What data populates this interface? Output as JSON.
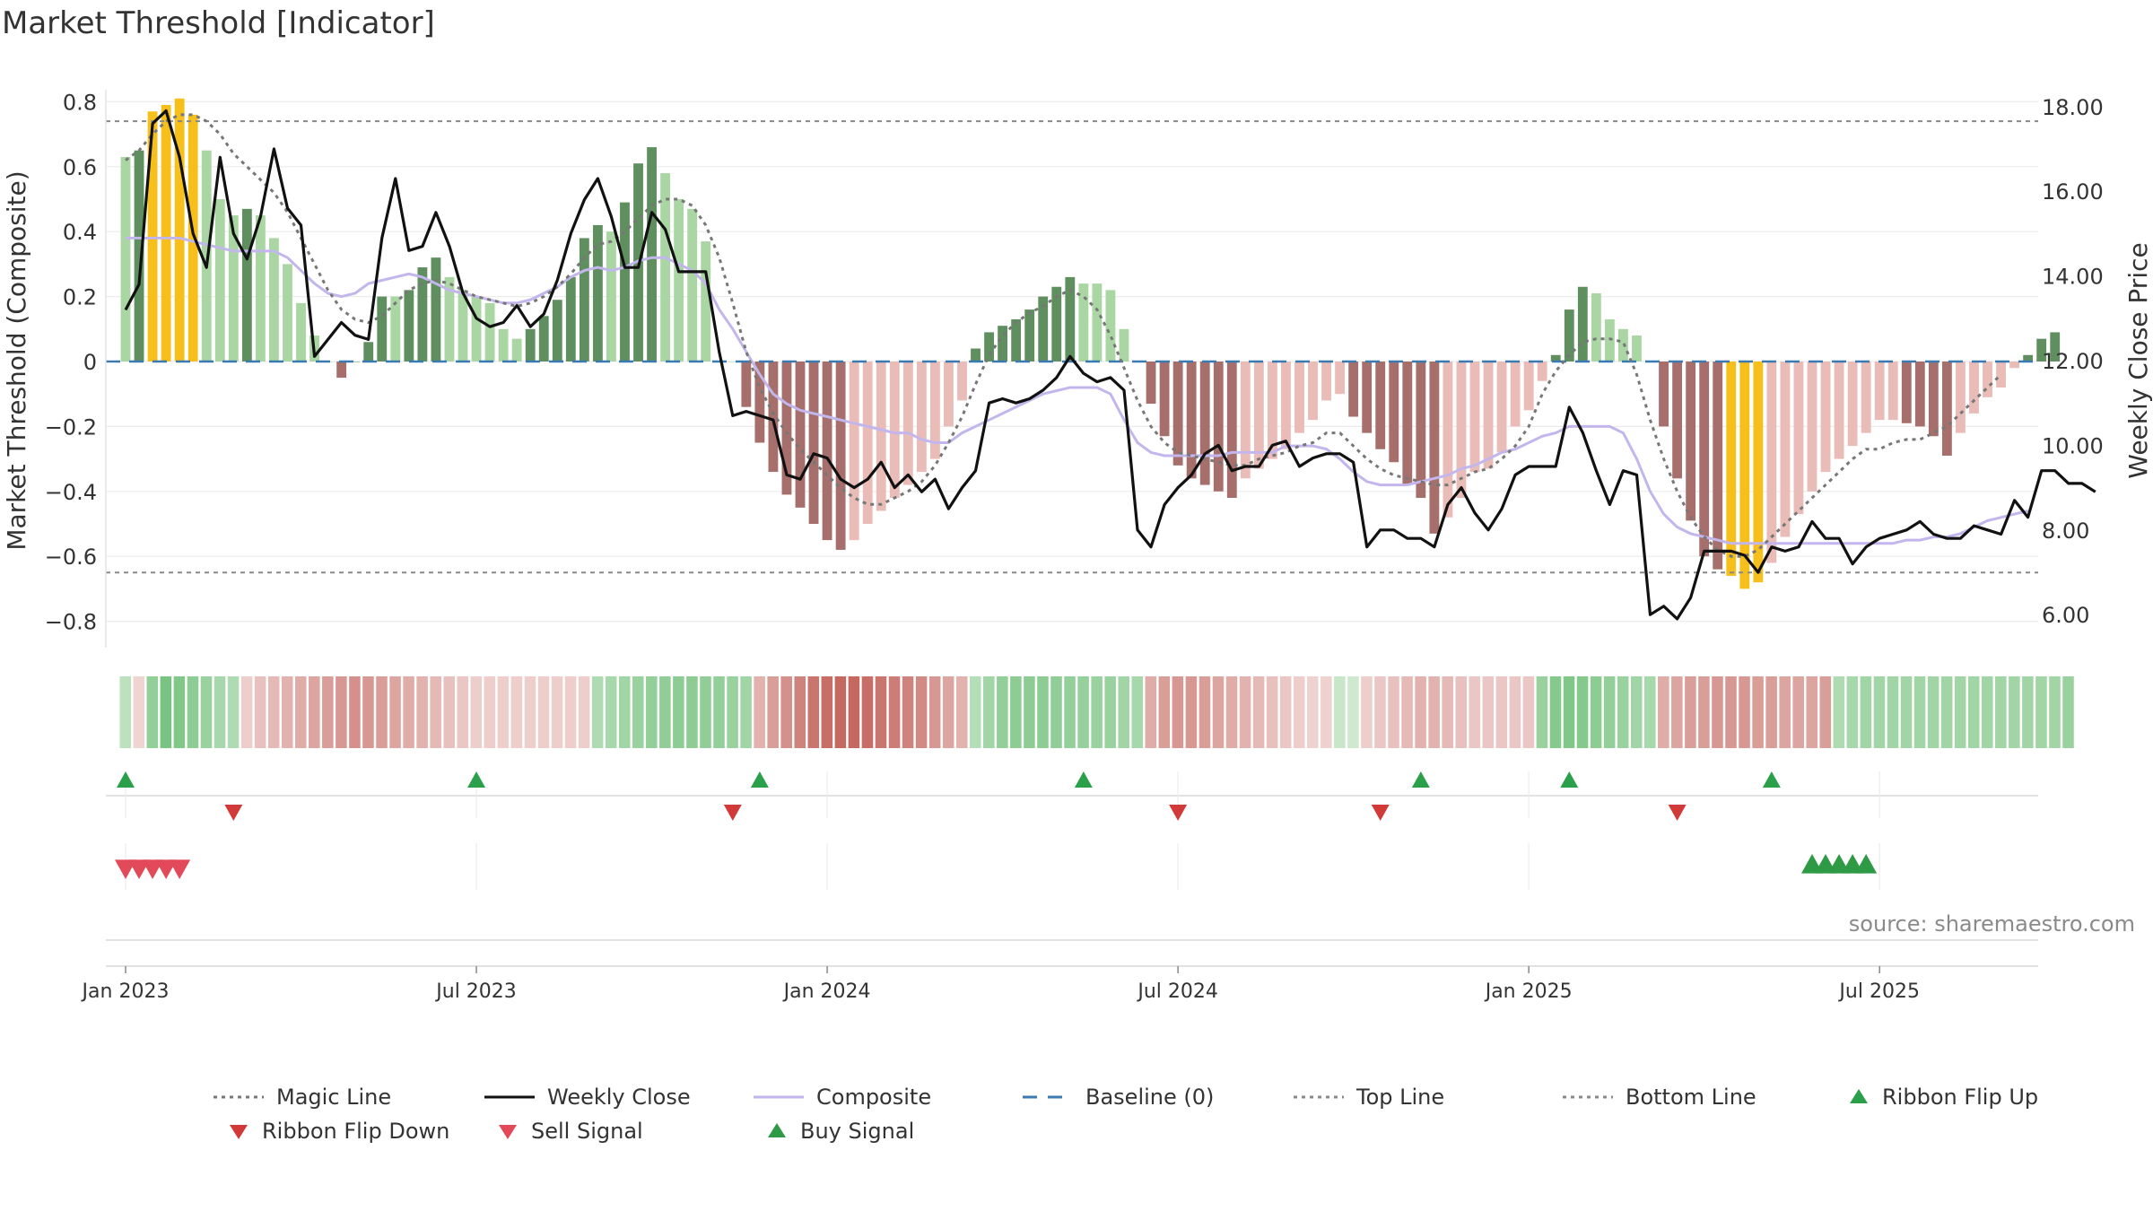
{
  "title": "Market Threshold [Indicator]",
  "source": "source: sharemaestro.com",
  "colors": {
    "magic": "#777777",
    "close": "#111111",
    "composite": "#c3b6ec",
    "baseline": "#3a7ab0",
    "top_bottom": "#888888",
    "flip_up": "#2aa04a",
    "flip_down": "#d23a3a",
    "sell": "#e24a5a",
    "buy": "#2f9a46",
    "bar_green_dark": "#5f8f5f",
    "bar_green_light": "#a9d6a2",
    "bar_red_dark": "#a66f6c",
    "bar_red_light": "#eabcb8",
    "bar_extreme": "#f7bf1a"
  },
  "legend": [
    {
      "key": "magic",
      "label": "Magic Line",
      "type": "dotted"
    },
    {
      "key": "close",
      "label": "Weekly Close",
      "type": "solid"
    },
    {
      "key": "composite",
      "label": "Composite",
      "type": "solid"
    },
    {
      "key": "baseline",
      "label": "Baseline (0)",
      "type": "dashed"
    },
    {
      "key": "top",
      "label": "Top Line",
      "type": "dotted"
    },
    {
      "key": "bottom",
      "label": "Bottom Line",
      "type": "dotted"
    },
    {
      "key": "flip_up",
      "label": "Ribbon Flip Up",
      "type": "tri-up"
    },
    {
      "key": "flip_down",
      "label": "Ribbon Flip Down",
      "type": "tri-down"
    },
    {
      "key": "sell",
      "label": "Sell Signal",
      "type": "tri-down"
    },
    {
      "key": "buy",
      "label": "Buy Signal",
      "type": "tri-up"
    }
  ],
  "chart_data": {
    "type": "bar",
    "ylabel_left": "Market Threshold (Composite)",
    "ylabel_right": "Weekly Close Price",
    "ylim_left": [
      -0.9,
      0.82
    ],
    "yticks_left": [
      "0.8",
      "0.6",
      "0.4",
      "0.2",
      "0",
      "−0.2",
      "−0.4",
      "−0.6",
      "−0.8"
    ],
    "ylim_right": [
      5.0,
      18.4
    ],
    "yticks_right": [
      "18.00",
      "16.00",
      "14.00",
      "12.00",
      "10.00",
      "8.00",
      "6.00"
    ],
    "x_start": "2022-12-26",
    "x_interval": "weekly",
    "x_ticks": [
      {
        "label": "Jan 2023",
        "week": 1
      },
      {
        "label": "Jul 2023",
        "week": 27
      },
      {
        "label": "Jan 2024",
        "week": 53
      },
      {
        "label": "Jul 2024",
        "week": 79
      },
      {
        "label": "Jan 2025",
        "week": 105
      },
      {
        "label": "Jul 2025",
        "week": 131
      }
    ],
    "top_line": 0.74,
    "bottom_line": -0.65,
    "composite_bars": [
      0.63,
      0.65,
      0.77,
      0.79,
      0.81,
      0.76,
      0.65,
      0.5,
      0.45,
      0.47,
      0.45,
      0.38,
      0.3,
      0.18,
      0.08,
      0.0,
      -0.05,
      0.0,
      0.06,
      0.2,
      0.2,
      0.22,
      0.29,
      0.32,
      0.26,
      0.22,
      0.2,
      0.18,
      0.1,
      0.07,
      0.1,
      0.14,
      0.19,
      0.26,
      0.38,
      0.42,
      0.4,
      0.49,
      0.61,
      0.66,
      0.58,
      0.5,
      0.47,
      0.37,
      0.0,
      0.0,
      -0.14,
      -0.25,
      -0.34,
      -0.41,
      -0.45,
      -0.5,
      -0.55,
      -0.58,
      -0.55,
      -0.5,
      -0.46,
      -0.42,
      -0.38,
      -0.34,
      -0.3,
      -0.2,
      -0.12,
      0.04,
      0.09,
      0.11,
      0.13,
      0.16,
      0.2,
      0.23,
      0.26,
      0.24,
      0.24,
      0.22,
      0.1,
      0.0,
      -0.13,
      -0.23,
      -0.32,
      -0.36,
      -0.38,
      -0.4,
      -0.42,
      -0.36,
      -0.33,
      -0.3,
      -0.27,
      -0.22,
      -0.18,
      -0.12,
      -0.1,
      -0.17,
      -0.22,
      -0.27,
      -0.31,
      -0.38,
      -0.42,
      -0.53,
      -0.48,
      -0.42,
      -0.34,
      -0.33,
      -0.28,
      -0.2,
      -0.15,
      -0.06,
      0.02,
      0.16,
      0.23,
      0.21,
      0.13,
      0.1,
      0.08,
      0.0,
      -0.2,
      -0.36,
      -0.49,
      -0.6,
      -0.64,
      -0.66,
      -0.7,
      -0.68,
      -0.62,
      -0.54,
      -0.47,
      -0.4,
      -0.34,
      -0.3,
      -0.26,
      -0.22,
      -0.18,
      -0.18,
      -0.19,
      -0.2,
      -0.23,
      -0.29,
      -0.22,
      -0.16,
      -0.11,
      -0.08,
      -0.02,
      0.02,
      0.07,
      0.09
    ],
    "weekly_close": [
      13.2,
      13.8,
      17.6,
      17.9,
      16.8,
      15.0,
      14.2,
      16.8,
      15.0,
      14.4,
      15.4,
      17.0,
      15.6,
      15.2,
      12.1,
      12.5,
      12.9,
      12.6,
      12.5,
      14.9,
      16.3,
      14.6,
      14.7,
      15.5,
      14.7,
      13.6,
      13.0,
      12.8,
      12.9,
      13.3,
      12.8,
      13.1,
      13.9,
      15.0,
      15.8,
      16.3,
      15.4,
      14.2,
      14.2,
      15.5,
      15.1,
      14.1,
      14.1,
      14.1,
      12.2,
      10.7,
      10.8,
      10.7,
      10.6,
      9.3,
      9.2,
      9.8,
      9.7,
      9.2,
      9.0,
      9.2,
      9.6,
      9.0,
      9.3,
      8.9,
      9.2,
      8.5,
      9.0,
      9.4,
      11.0,
      11.1,
      11.0,
      11.1,
      11.3,
      11.6,
      12.1,
      11.7,
      11.5,
      11.6,
      11.3,
      8.0,
      7.6,
      8.6,
      9.0,
      9.3,
      9.8,
      10.0,
      9.4,
      9.5,
      9.5,
      10.0,
      10.1,
      9.5,
      9.7,
      9.8,
      9.8,
      9.6,
      7.6,
      8.0,
      8.0,
      7.8,
      7.8,
      7.6,
      8.6,
      9.0,
      8.4,
      8.0,
      8.5,
      9.3,
      9.5,
      9.5,
      9.5,
      10.9,
      10.3,
      9.4,
      8.6,
      9.4,
      9.3,
      6.0,
      6.2,
      5.9,
      6.4,
      7.5,
      7.5,
      7.5,
      7.4,
      7.0,
      7.6,
      7.5,
      7.6,
      8.2,
      7.8,
      7.8,
      7.2,
      7.6,
      7.8,
      7.9,
      8.0,
      8.2,
      7.9,
      7.8,
      7.8,
      8.1,
      8.0,
      7.9,
      8.7,
      8.3,
      9.4,
      9.4,
      9.1,
      9.1,
      8.9
    ],
    "magic_line": [
      0.62,
      0.65,
      0.7,
      0.74,
      0.76,
      0.76,
      0.74,
      0.7,
      0.64,
      0.6,
      0.56,
      0.52,
      0.46,
      0.38,
      0.3,
      0.22,
      0.16,
      0.13,
      0.12,
      0.14,
      0.18,
      0.22,
      0.24,
      0.25,
      0.24,
      0.22,
      0.2,
      0.19,
      0.18,
      0.17,
      0.18,
      0.2,
      0.23,
      0.27,
      0.32,
      0.36,
      0.37,
      0.4,
      0.44,
      0.48,
      0.5,
      0.5,
      0.48,
      0.42,
      0.32,
      0.18,
      0.03,
      -0.08,
      -0.16,
      -0.22,
      -0.27,
      -0.31,
      -0.35,
      -0.39,
      -0.42,
      -0.44,
      -0.44,
      -0.42,
      -0.4,
      -0.37,
      -0.32,
      -0.25,
      -0.17,
      -0.07,
      0.02,
      0.08,
      0.12,
      0.15,
      0.17,
      0.2,
      0.22,
      0.2,
      0.16,
      0.08,
      -0.02,
      -0.12,
      -0.2,
      -0.25,
      -0.28,
      -0.29,
      -0.3,
      -0.31,
      -0.32,
      -0.32,
      -0.3,
      -0.29,
      -0.28,
      -0.26,
      -0.25,
      -0.22,
      -0.22,
      -0.26,
      -0.3,
      -0.33,
      -0.35,
      -0.36,
      -0.37,
      -0.38,
      -0.38,
      -0.36,
      -0.34,
      -0.33,
      -0.3,
      -0.26,
      -0.2,
      -0.1,
      -0.03,
      0.02,
      0.06,
      0.07,
      0.07,
      0.06,
      -0.04,
      -0.18,
      -0.3,
      -0.4,
      -0.48,
      -0.54,
      -0.58,
      -0.6,
      -0.6,
      -0.58,
      -0.54,
      -0.5,
      -0.46,
      -0.42,
      -0.38,
      -0.34,
      -0.3,
      -0.27,
      -0.27,
      -0.25,
      -0.24,
      -0.24,
      -0.22,
      -0.2,
      -0.16,
      -0.12,
      -0.08,
      -0.04
    ],
    "composite_line": [
      0.38,
      0.38,
      0.38,
      0.38,
      0.38,
      0.37,
      0.36,
      0.35,
      0.34,
      0.34,
      0.34,
      0.34,
      0.32,
      0.28,
      0.24,
      0.21,
      0.2,
      0.21,
      0.24,
      0.25,
      0.26,
      0.27,
      0.26,
      0.24,
      0.22,
      0.21,
      0.2,
      0.19,
      0.18,
      0.18,
      0.19,
      0.21,
      0.23,
      0.26,
      0.28,
      0.29,
      0.28,
      0.29,
      0.31,
      0.32,
      0.32,
      0.3,
      0.28,
      0.24,
      0.16,
      0.1,
      0.03,
      -0.04,
      -0.1,
      -0.13,
      -0.15,
      -0.16,
      -0.17,
      -0.18,
      -0.19,
      -0.2,
      -0.21,
      -0.22,
      -0.22,
      -0.24,
      -0.25,
      -0.25,
      -0.22,
      -0.2,
      -0.18,
      -0.16,
      -0.14,
      -0.12,
      -0.1,
      -0.09,
      -0.08,
      -0.08,
      -0.08,
      -0.1,
      -0.18,
      -0.25,
      -0.28,
      -0.29,
      -0.29,
      -0.29,
      -0.29,
      -0.29,
      -0.28,
      -0.28,
      -0.28,
      -0.28,
      -0.26,
      -0.26,
      -0.26,
      -0.27,
      -0.3,
      -0.34,
      -0.37,
      -0.38,
      -0.38,
      -0.38,
      -0.37,
      -0.36,
      -0.35,
      -0.33,
      -0.32,
      -0.3,
      -0.28,
      -0.27,
      -0.25,
      -0.23,
      -0.22,
      -0.2,
      -0.2,
      -0.2,
      -0.2,
      -0.22,
      -0.3,
      -0.4,
      -0.47,
      -0.51,
      -0.53,
      -0.54,
      -0.55,
      -0.56,
      -0.56,
      -0.56,
      -0.56,
      -0.56,
      -0.56,
      -0.56,
      -0.56,
      -0.56,
      -0.56,
      -0.56,
      -0.56,
      -0.56,
      -0.55,
      -0.55,
      -0.54,
      -0.54,
      -0.53,
      -0.51,
      -0.49,
      -0.48,
      -0.47,
      -0.46
    ],
    "ribbon_levels": [
      0.3,
      -0.1,
      0.6,
      0.8,
      0.75,
      0.65,
      0.55,
      0.45,
      0.4,
      -0.15,
      -0.25,
      -0.3,
      -0.35,
      -0.4,
      -0.45,
      -0.5,
      -0.55,
      -0.6,
      -0.55,
      -0.5,
      -0.45,
      -0.4,
      -0.35,
      -0.3,
      -0.25,
      -0.2,
      -0.15,
      -0.15,
      -0.15,
      -0.15,
      -0.15,
      -0.15,
      -0.15,
      -0.15,
      -0.15,
      0.4,
      0.45,
      0.5,
      0.55,
      0.6,
      0.62,
      0.65,
      0.65,
      0.62,
      0.6,
      0.55,
      0.5,
      -0.35,
      -0.5,
      -0.6,
      -0.7,
      -0.8,
      -0.85,
      -0.9,
      -0.9,
      -0.85,
      -0.8,
      -0.75,
      -0.7,
      -0.65,
      -0.55,
      -0.45,
      -0.35,
      0.35,
      0.5,
      0.6,
      0.65,
      0.65,
      0.65,
      0.62,
      0.6,
      0.58,
      0.55,
      0.55,
      0.5,
      0.45,
      -0.4,
      -0.5,
      -0.55,
      -0.55,
      -0.5,
      -0.45,
      -0.4,
      -0.35,
      -0.3,
      -0.25,
      -0.2,
      -0.15,
      -0.12,
      -0.12,
      0.2,
      0.15,
      -0.15,
      -0.2,
      -0.25,
      -0.3,
      -0.35,
      -0.35,
      -0.3,
      -0.25,
      -0.2,
      -0.2,
      -0.2,
      -0.2,
      -0.2,
      0.55,
      0.7,
      0.75,
      0.7,
      0.65,
      0.6,
      0.55,
      0.5,
      0.45,
      -0.4,
      -0.45,
      -0.5,
      -0.5,
      -0.55,
      -0.55,
      -0.55,
      -0.5,
      -0.5,
      -0.45,
      -0.45,
      -0.45,
      -0.5,
      0.4,
      0.45,
      0.5,
      0.5,
      0.5,
      0.5,
      0.5,
      0.5,
      0.5,
      0.5,
      0.5,
      0.5,
      0.5,
      0.5,
      0.5,
      0.5,
      0.5,
      0.55
    ],
    "ribbon_flip_up": [
      0,
      26,
      47,
      71,
      96,
      107,
      122
    ],
    "ribbon_flip_down": [
      8,
      45,
      78,
      93,
      115
    ],
    "sell_signal": [
      1,
      2,
      3,
      4,
      5
    ],
    "buy_signal": [
      119,
      120,
      121,
      122,
      123
    ]
  }
}
